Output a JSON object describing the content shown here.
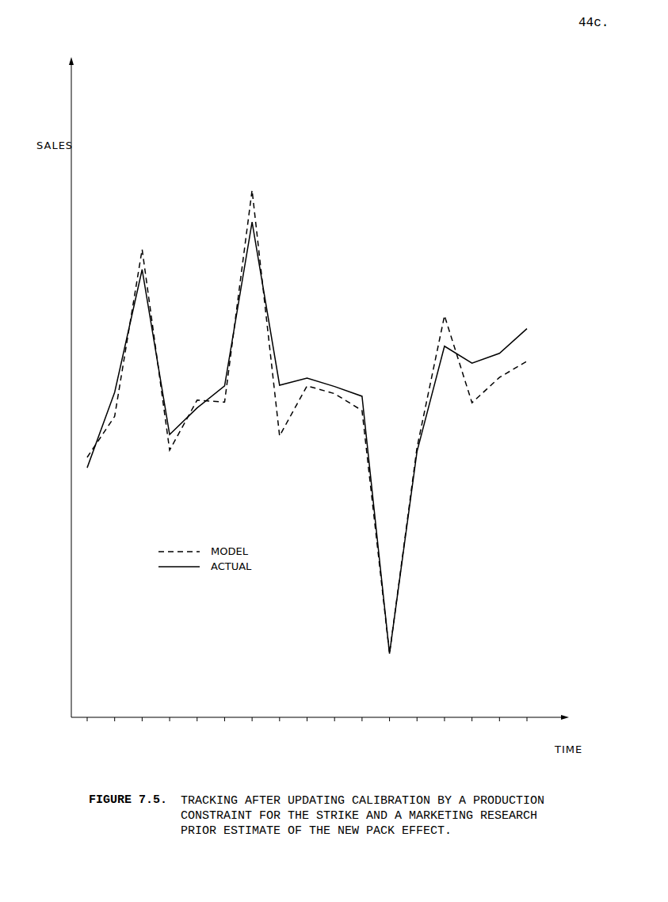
{
  "page": "44c.",
  "chart_data": {
    "type": "line",
    "xlabel": "TIME",
    "ylabel": "SALES",
    "categories": [
      null,
      null,
      null,
      null,
      null,
      null,
      null,
      null,
      null,
      null,
      null,
      null,
      null,
      null,
      null,
      null,
      null
    ],
    "series": [
      {
        "name": "MODEL",
        "color": "#000000",
        "line_style": "dashed",
        "values": [
          40.0,
          46.3,
          72.0,
          41.1,
          48.8,
          48.5,
          81.1,
          43.3,
          51.0,
          49.8,
          47.2,
          9.8,
          41.5,
          61.8,
          48.4,
          52.3,
          54.8
        ]
      },
      {
        "name": "ACTUAL",
        "color": "#000000",
        "line_style": "solid",
        "values": [
          38.4,
          50.0,
          68.9,
          43.5,
          47.6,
          51.0,
          76.2,
          51.1,
          52.2,
          50.9,
          49.4,
          9.8,
          40.9,
          57.1,
          54.5,
          56.0,
          59.8
        ]
      }
    ],
    "ylim": [
      0,
      100
    ],
    "yticks": [],
    "tick_labels": false,
    "legend": "lower left",
    "grid": false
  },
  "caption": {
    "label": "FIGURE 7.5.",
    "lines": [
      "TRACKING AFTER UPDATING CALIBRATION BY A PRODUCTION",
      "CONSTRAINT FOR THE STRIKE AND A MARKETING RESEARCH",
      "PRIOR ESTIMATE OF THE NEW PACK EFFECT."
    ]
  }
}
